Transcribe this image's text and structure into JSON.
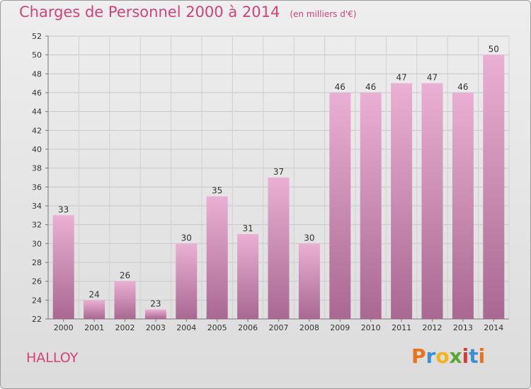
{
  "header": {
    "title": "Charges de Personnel 2000 à 2014",
    "subtitle": "(en milliers d'€)"
  },
  "commune": "HALLOY",
  "logo": {
    "letters": [
      "P",
      "r",
      "o",
      "x",
      "i",
      "t",
      "i"
    ],
    "colors": [
      "#e8731a",
      "#3a8fd6",
      "#f2b31b",
      "#5aa832",
      "#d63c3c",
      "#3a8fd6",
      "#e8731a"
    ]
  },
  "colors": {
    "accent": "#d2437a",
    "bar_top": "#eab0d3",
    "bar_bottom": "#a96892"
  },
  "chart_data": {
    "type": "bar",
    "title": "Charges de Personnel 2000 à 2014",
    "subtitle": "(en milliers d'€)",
    "categories": [
      "2000",
      "2001",
      "2002",
      "2003",
      "2004",
      "2005",
      "2006",
      "2007",
      "2008",
      "2009",
      "2010",
      "2011",
      "2012",
      "2013",
      "2014"
    ],
    "values": [
      33,
      24,
      26,
      23,
      30,
      35,
      31,
      37,
      30,
      46,
      46,
      47,
      47,
      46,
      50
    ],
    "ylim": [
      22,
      52
    ],
    "yticks": [
      22,
      24,
      26,
      28,
      30,
      32,
      34,
      36,
      38,
      40,
      42,
      44,
      46,
      48,
      50,
      52
    ],
    "grid": true,
    "data_labels": true
  }
}
